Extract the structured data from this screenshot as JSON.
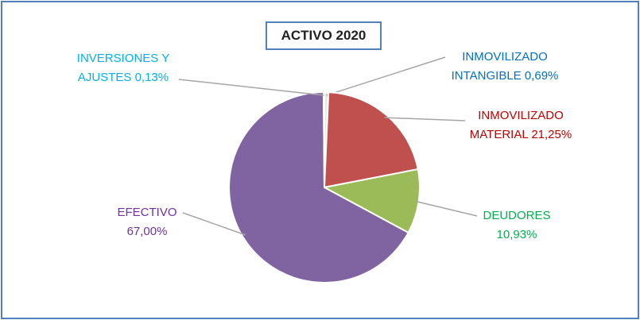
{
  "chart_data": {
    "type": "pie",
    "title": "ACTIVO 2020",
    "categories": [
      "INMOVILIZADO INTANGIBLE",
      "INMOVILIZADO MATERIAL",
      "DEUDORES",
      "EFECTIVO",
      "INVERSIONES Y AJUSTES"
    ],
    "values": [
      0.69,
      21.25,
      10.93,
      67.0,
      0.13
    ],
    "value_labels": [
      "0,69%",
      "21,25%",
      "10,93%",
      "67,00%",
      "0,13%"
    ],
    "colors": [
      "#e8e8e8",
      "#c0504d",
      "#9bbb59",
      "#8064a2",
      "#d9eef5"
    ],
    "label_colors": [
      "#0070c0",
      "#c00000",
      "#00b050",
      "#7030a0",
      "#00b0f0"
    ]
  }
}
